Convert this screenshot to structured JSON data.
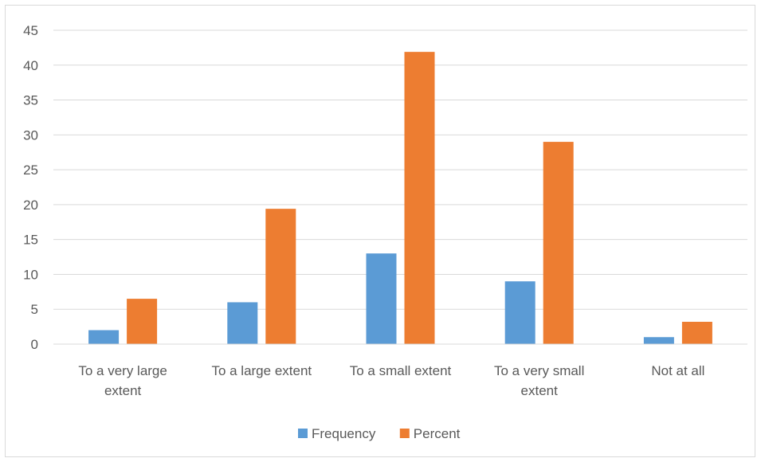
{
  "chart_data": {
    "type": "bar",
    "title": "",
    "xlabel": "",
    "ylabel": "",
    "categories": [
      [
        "To a very large",
        "extent"
      ],
      [
        "To a large extent"
      ],
      [
        "To a small extent"
      ],
      [
        "To a very small",
        "extent"
      ],
      [
        "Not at all"
      ]
    ],
    "series": [
      {
        "name": "Frequency",
        "color": "#5b9bd5",
        "values": [
          2,
          6,
          13,
          9,
          1
        ]
      },
      {
        "name": "Percent",
        "color": "#ed7d31",
        "values": [
          6.5,
          19.4,
          41.9,
          29.0,
          3.2
        ]
      }
    ],
    "ylim": [
      0,
      45
    ],
    "yticks": [
      0,
      5,
      10,
      15,
      20,
      25,
      30,
      35,
      40,
      45
    ],
    "grid": true,
    "legend_position": "bottom"
  }
}
